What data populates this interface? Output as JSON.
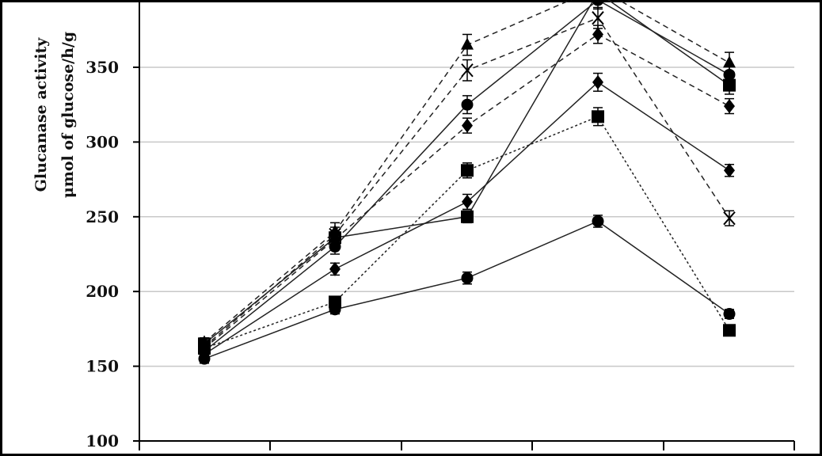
{
  "chart_data": {
    "type": "line",
    "ylabel_line1": "Glucanase activity",
    "ylabel_line2": "μmol of glucose/h/g",
    "ylim": [
      100,
      400
    ],
    "y_ticks": [
      100,
      150,
      200,
      250,
      300,
      350
    ],
    "x": [
      1,
      2,
      3,
      4,
      5
    ],
    "grid": "horizontal",
    "series": [
      {
        "marker": "circle",
        "dash": "solid",
        "values": [
          155,
          188,
          209,
          247,
          185
        ],
        "err": [
          3,
          3,
          4,
          4,
          3
        ]
      },
      {
        "marker": "square",
        "dash": "dotted",
        "values": [
          162,
          193,
          281,
          317,
          174
        ],
        "err": [
          3,
          3,
          5,
          6,
          3
        ]
      },
      {
        "marker": "diamond",
        "dash": "solid",
        "values": [
          158,
          215,
          260,
          340,
          281
        ],
        "err": [
          3,
          4,
          5,
          6,
          4
        ]
      },
      {
        "marker": "square",
        "dash": "solid",
        "values": [
          165,
          236,
          250,
          400,
          338
        ],
        "err": [
          3,
          5,
          4,
          6,
          6
        ]
      },
      {
        "marker": "circle",
        "dash": "solid",
        "values": [
          160,
          230,
          325,
          395,
          345
        ],
        "err": [
          3,
          5,
          6,
          6,
          6
        ]
      },
      {
        "marker": "diamond",
        "dash": "dashed",
        "values": [
          162,
          235,
          311,
          372,
          324
        ],
        "err": [
          3,
          5,
          5,
          6,
          5
        ]
      },
      {
        "marker": "x",
        "dash": "dashed",
        "values": [
          163,
          238,
          348,
          383,
          249
        ],
        "err": [
          3,
          5,
          7,
          7,
          5
        ]
      },
      {
        "marker": "triangle",
        "dash": "dashed",
        "values": [
          166,
          240,
          365,
          403,
          353
        ],
        "err": [
          3,
          6,
          7,
          8,
          7
        ]
      }
    ]
  }
}
